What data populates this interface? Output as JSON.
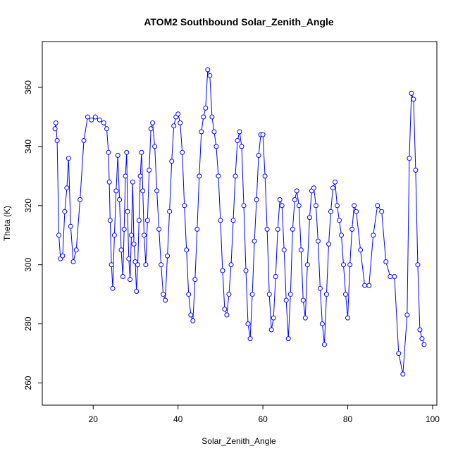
{
  "chart_data": {
    "type": "line",
    "title": "ATOM2 Southbound Solar_Zenith_Angle",
    "xlabel": "Solar_Zenith_Angle",
    "ylabel": "Theta (K)",
    "xlim": [
      8,
      101
    ],
    "ylim": [
      252.5,
      375.5
    ],
    "x_ticks": [
      20,
      40,
      60,
      80,
      100
    ],
    "y_ticks": [
      260,
      280,
      300,
      320,
      340,
      360
    ],
    "grid": false,
    "legend": "none",
    "color": "#0000ff",
    "marker": "open-circle",
    "series": [
      {
        "x": [
          11.0,
          11.2,
          11.5,
          11.9,
          12.3,
          12.8,
          13.3,
          13.8,
          14.2,
          14.7,
          15.3,
          16.0,
          16.9,
          17.8,
          18.7,
          19.6,
          20.5,
          21.5,
          22.5,
          23.2,
          23.6,
          23.8,
          24.0,
          24.3,
          24.6,
          25.0,
          25.4,
          25.8,
          26.2,
          26.6,
          27.0,
          27.3,
          27.6,
          27.9,
          28.1,
          28.4,
          28.7,
          29.0,
          29.3,
          29.6,
          29.9,
          30.2,
          30.5,
          30.8,
          31.1,
          31.4,
          31.7,
          32.0,
          32.4,
          32.8,
          33.2,
          33.6,
          34.0,
          34.5,
          35.0,
          35.5,
          36.0,
          36.5,
          37.0,
          37.5,
          38.0,
          38.5,
          39.0,
          39.5,
          40.0,
          40.5,
          41.0,
          41.5,
          42.0,
          42.5,
          43.0,
          43.5,
          44.0,
          44.5,
          45.0,
          45.5,
          46.0,
          46.5,
          47.0,
          47.5,
          48.0,
          48.5,
          49.0,
          49.5,
          50.0,
          50.5,
          51.0,
          51.5,
          52.0,
          52.5,
          53.0,
          53.5,
          54.0,
          54.5,
          55.0,
          55.5,
          56.0,
          56.5,
          57.0,
          57.5,
          58.0,
          58.5,
          59.0,
          59.5,
          60.0,
          60.5,
          61.0,
          61.5,
          62.0,
          62.5,
          63.0,
          63.5,
          64.0,
          64.5,
          65.0,
          65.5,
          66.0,
          66.5,
          67.0,
          67.5,
          68.0,
          68.5,
          69.0,
          69.5,
          70.0,
          70.5,
          71.0,
          71.5,
          72.0,
          72.5,
          73.0,
          73.5,
          74.0,
          74.5,
          75.0,
          75.5,
          76.0,
          76.5,
          77.0,
          77.5,
          78.0,
          78.5,
          79.0,
          79.5,
          80.0,
          80.5,
          81.0,
          81.5,
          82.0,
          83.0,
          84.0,
          85.0,
          86.0,
          87.0,
          88.0,
          89.0,
          90.0,
          91.0,
          92.0,
          93.0,
          94.0,
          94.5,
          95.0,
          95.5,
          96.0,
          96.5,
          97.0,
          97.5,
          98.0
        ],
        "y": [
          346,
          348,
          342,
          310,
          302,
          303,
          318,
          326,
          336,
          313,
          301,
          305,
          322,
          342,
          350,
          349,
          350,
          349,
          348,
          346,
          338,
          328,
          315,
          300,
          292,
          310,
          325,
          337,
          322,
          305,
          296,
          312,
          330,
          338,
          318,
          302,
          295,
          310,
          328,
          307,
          301,
          291,
          300,
          315,
          330,
          338,
          325,
          310,
          300,
          315,
          332,
          346,
          348,
          340,
          325,
          312,
          300,
          290,
          288,
          303,
          318,
          335,
          347,
          350,
          351,
          348,
          338,
          320,
          305,
          290,
          283,
          281,
          295,
          312,
          330,
          345,
          350,
          353,
          366,
          364,
          350,
          345,
          340,
          330,
          315,
          298,
          285,
          283,
          290,
          300,
          315,
          330,
          342,
          345,
          340,
          320,
          298,
          280,
          275,
          290,
          308,
          322,
          337,
          344,
          344,
          330,
          312,
          290,
          278,
          282,
          296,
          312,
          322,
          320,
          305,
          288,
          275,
          290,
          312,
          322,
          325,
          320,
          305,
          288,
          282,
          300,
          316,
          325,
          326,
          320,
          308,
          292,
          280,
          273,
          290,
          307,
          318,
          326,
          328,
          320,
          315,
          310,
          300,
          290,
          282,
          300,
          312,
          320,
          318,
          305,
          293,
          293,
          310,
          320,
          318,
          301,
          296,
          296,
          270,
          263,
          283,
          336,
          358,
          356,
          332,
          300,
          278,
          275,
          273
        ]
      }
    ]
  }
}
